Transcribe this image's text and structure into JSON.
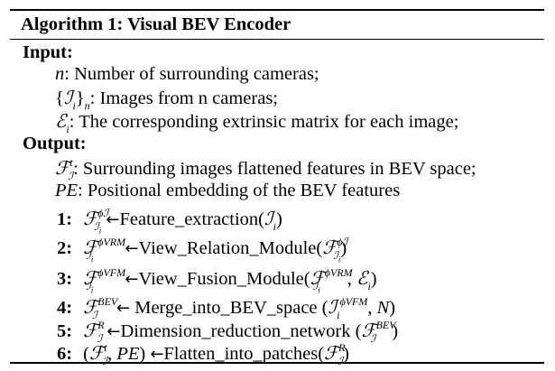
{
  "algorithm": {
    "label": "Algorithm 1:",
    "title": "Visual BEV Encoder"
  },
  "input": {
    "heading": "Input:",
    "items": [
      {
        "symbol": "n",
        "text": ": Number of surrounding cameras;"
      },
      {
        "symbol": "{I_i}_n",
        "text": ": Images from n cameras;"
      },
      {
        "symbol": "E_i",
        "text": ": The corresponding extrinsic matrix for each image;"
      }
    ]
  },
  "output": {
    "heading": "Output:",
    "items": [
      {
        "symbol": "F^t_I",
        "text": ": Surrounding images flattened features in BEV space;"
      },
      {
        "symbol": "PE",
        "text": ": Positional embedding of the BEV features"
      }
    ]
  },
  "steps": [
    {
      "num": "1:",
      "lhs": "F^{φ_I}_{I_i}",
      "func": "Feature_extraction",
      "args": "(I_i)"
    },
    {
      "num": "2:",
      "lhs": "F^{φ_VRM}_{I_i}",
      "func": "View_Relation_Module",
      "args": "(F^{φ_I}_{I_i})"
    },
    {
      "num": "3:",
      "lhs": "F^{φ_VFM}_{I_i}",
      "func": "View_Fusion_Module",
      "args": "(F^{φ_VRM}_{I_i}, E_i)"
    },
    {
      "num": "4:",
      "lhs": "F^{BEV}_I",
      "func": "Merge_into_BEV_space",
      "args": "(I_i^{φ_VFM}, N)"
    },
    {
      "num": "5:",
      "lhs": "F^R_I",
      "func": "Dimension_reduction_network",
      "args": "(F^{BEV}_I)"
    },
    {
      "num": "6:",
      "lhs": "(F^t_I, PE)",
      "func": "Flatten_into_patches",
      "args": "(F^R_I)"
    }
  ]
}
